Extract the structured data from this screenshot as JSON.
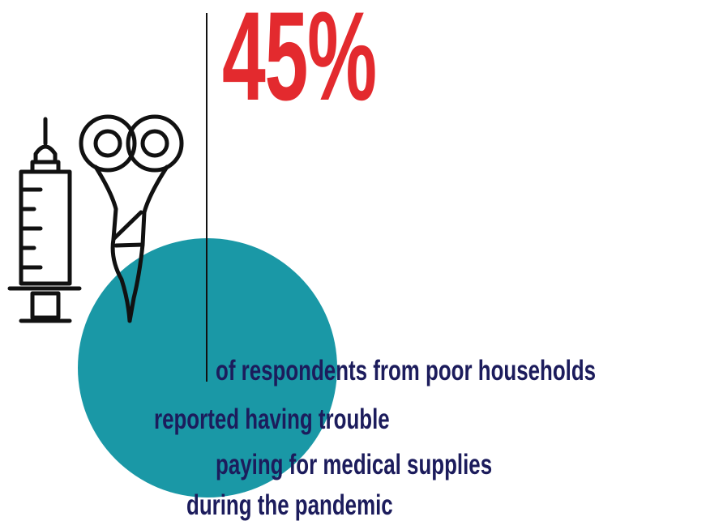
{
  "stat": {
    "value": "45%",
    "color": "#e32a2e"
  },
  "caption": {
    "lines": [
      "of respondents from poor households",
      "reported having trouble",
      "paying for medical supplies",
      "during the pandemic"
    ],
    "color": "#1c1c5c"
  },
  "accent_circle_color": "#1a98a6",
  "icons": [
    "syringe-icon",
    "scissors-icon"
  ]
}
